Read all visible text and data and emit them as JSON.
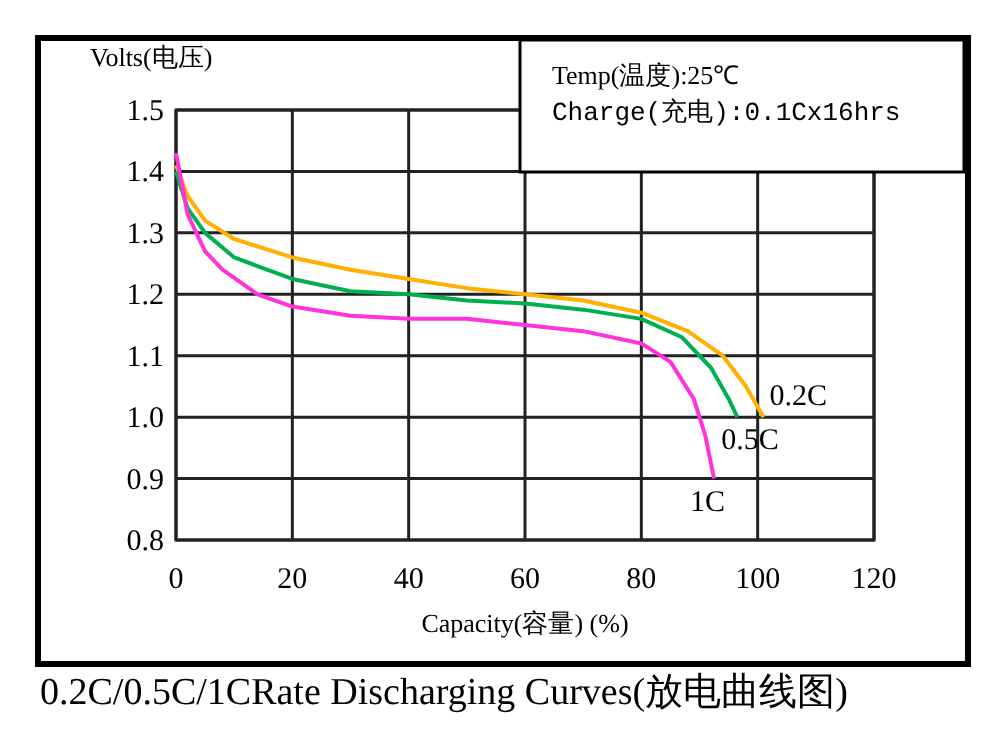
{
  "chart_data": {
    "type": "line",
    "title": "0.2C/0.5C/1CRate Discharging Curves(放电曲线图)",
    "xlabel": "Capacity(容量) (%)",
    "ylabel": "Volts(电压)",
    "annotations": [
      "Temp(温度):25℃",
      "Charge(充电):0.1Cx16hrs"
    ],
    "xlim": [
      0,
      120
    ],
    "xticks": [
      0,
      20,
      40,
      60,
      80,
      100,
      120
    ],
    "ylim": [
      0.8,
      1.5
    ],
    "yticks": [
      {
        "value": 0.8,
        "label": "0.8"
      },
      {
        "value": 0.9,
        "label": "0.9"
      },
      {
        "value": 1.0,
        "label": "1.0"
      },
      {
        "value": 1.1,
        "label": "1.1"
      },
      {
        "value": 1.2,
        "label": "1.2"
      },
      {
        "value": 1.3,
        "label": "1.3"
      },
      {
        "value": 1.4,
        "label": "1.4"
      },
      {
        "value": 1.5,
        "label": "1.5"
      }
    ],
    "grid": true,
    "series": [
      {
        "name": "0.2C",
        "color": "#ffb000",
        "x": [
          0,
          2,
          5,
          10,
          20,
          30,
          40,
          50,
          60,
          70,
          80,
          88,
          94,
          98,
          101
        ],
        "values": [
          1.41,
          1.36,
          1.32,
          1.29,
          1.26,
          1.24,
          1.225,
          1.21,
          1.2,
          1.19,
          1.17,
          1.14,
          1.1,
          1.05,
          1.0
        ]
      },
      {
        "name": "0.5C",
        "color": "#00b050",
        "x": [
          0,
          2,
          5,
          10,
          20,
          30,
          40,
          50,
          60,
          70,
          80,
          87,
          92,
          95,
          96.5
        ],
        "values": [
          1.4,
          1.34,
          1.3,
          1.26,
          1.225,
          1.205,
          1.2,
          1.19,
          1.185,
          1.175,
          1.16,
          1.13,
          1.08,
          1.03,
          1.0
        ]
      },
      {
        "name": "1C",
        "color": "#ff33dd",
        "x": [
          0,
          2,
          5,
          8,
          14,
          20,
          30,
          40,
          50,
          60,
          70,
          80,
          85,
          89,
          91,
          92.5
        ],
        "values": [
          1.43,
          1.33,
          1.27,
          1.24,
          1.2,
          1.18,
          1.165,
          1.16,
          1.16,
          1.15,
          1.14,
          1.12,
          1.09,
          1.03,
          0.97,
          0.9
        ]
      }
    ]
  }
}
